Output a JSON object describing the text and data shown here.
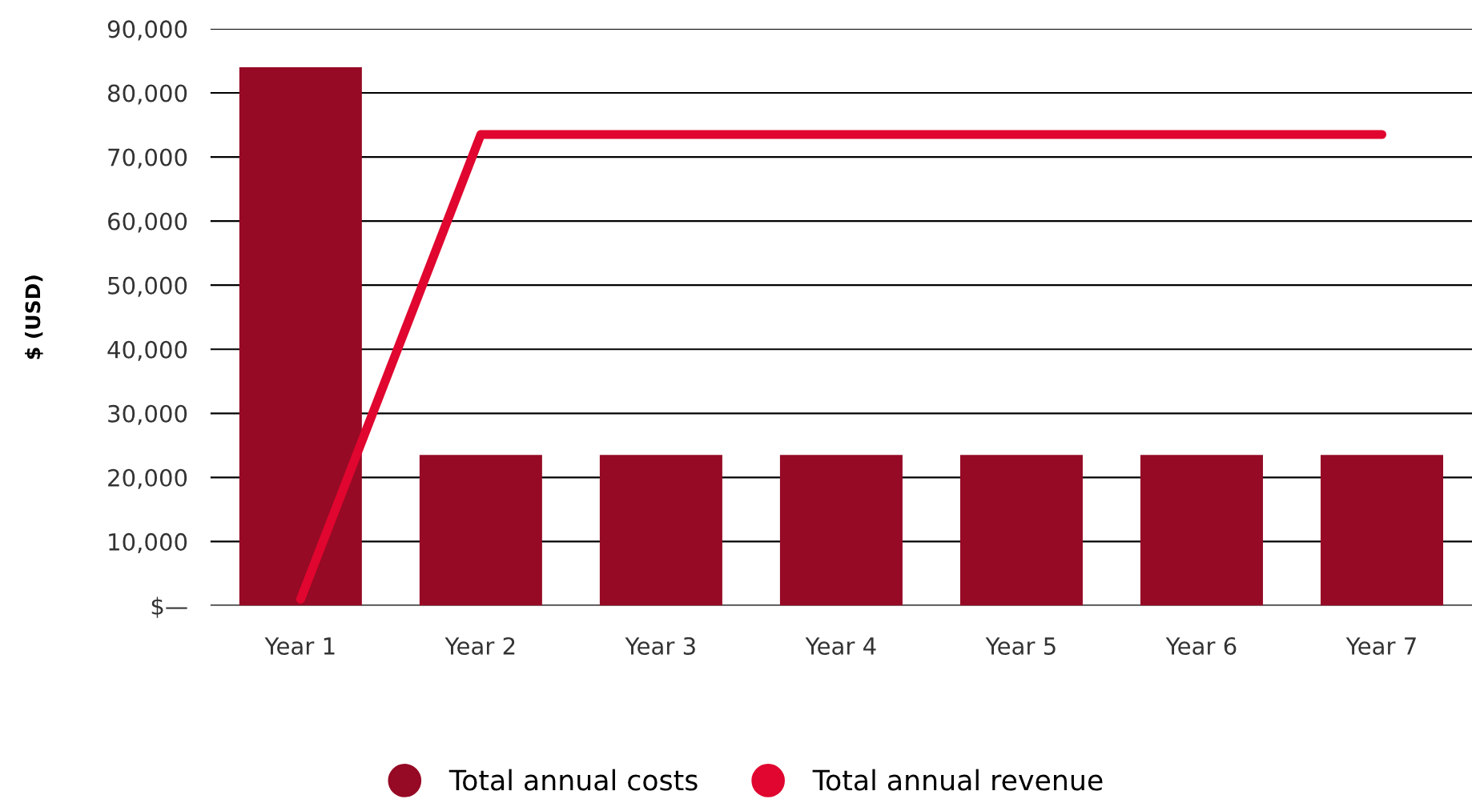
{
  "chart_data": {
    "type": "bar",
    "ylabel": "$ (USD)",
    "categories": [
      "Year 1",
      "Year 2",
      "Year 3",
      "Year 4",
      "Year 5",
      "Year 6",
      "Year 7"
    ],
    "series": [
      {
        "name": "Total annual costs",
        "color": "#960a25",
        "values": [
          84000,
          23500,
          23500,
          23500,
          23500,
          23500,
          23500
        ]
      },
      {
        "name": "Total annual revenue",
        "type": "line",
        "color": "#e0062f",
        "values": [
          1000,
          73500,
          73500,
          73500,
          73500,
          73500,
          73500
        ]
      }
    ],
    "ylim": [
      0,
      90000
    ],
    "yticks": [
      {
        "value": 0,
        "label": "$—"
      },
      {
        "value": 10000,
        "label": "10,000"
      },
      {
        "value": 20000,
        "label": "20,000"
      },
      {
        "value": 30000,
        "label": "30,000"
      },
      {
        "value": 40000,
        "label": "40,000"
      },
      {
        "value": 50000,
        "label": "50,000"
      },
      {
        "value": 60000,
        "label": "60,000"
      },
      {
        "value": 70000,
        "label": "70,000"
      },
      {
        "value": 80000,
        "label": "80,000"
      },
      {
        "value": 90000,
        "label": "90,000"
      }
    ],
    "grid": "y",
    "legend": "bottom",
    "marker": "none"
  }
}
